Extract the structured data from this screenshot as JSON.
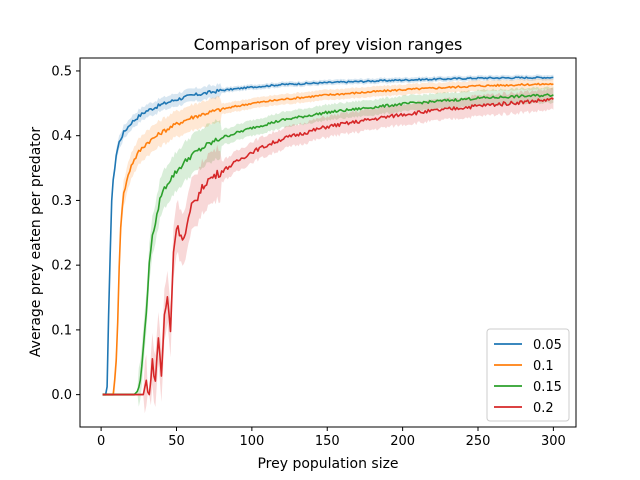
{
  "chart_data": {
    "type": "line",
    "title": "Comparison of prey vision ranges",
    "xlabel": "Prey population size",
    "ylabel": "Average prey eaten per predator",
    "xlim": [
      -14,
      315
    ],
    "ylim": [
      -0.05,
      0.52
    ],
    "xticks": [
      0,
      50,
      100,
      150,
      200,
      250,
      300
    ],
    "yticks": [
      0.0,
      0.1,
      0.2,
      0.3,
      0.4,
      0.5
    ],
    "ytick_labels": [
      "0.0",
      "0.1",
      "0.2",
      "0.3",
      "0.4",
      "0.5"
    ],
    "grid": false,
    "legend_position": "lower-right",
    "series": [
      {
        "name": "0.05",
        "color": "#1f77b4",
        "x": [
          1,
          3,
          4,
          5,
          6,
          7,
          8,
          9,
          10,
          12,
          15,
          20,
          25,
          30,
          40,
          50,
          60,
          70,
          80,
          100,
          120,
          150,
          200,
          250,
          300
        ],
        "y": [
          0.0,
          0.0,
          0.01,
          0.12,
          0.22,
          0.3,
          0.33,
          0.35,
          0.37,
          0.39,
          0.405,
          0.42,
          0.43,
          0.438,
          0.448,
          0.456,
          0.462,
          0.466,
          0.47,
          0.475,
          0.479,
          0.482,
          0.486,
          0.489,
          0.49
        ]
      },
      {
        "name": "0.1",
        "color": "#ff7f0e",
        "x": [
          1,
          5,
          8,
          10,
          11,
          12,
          13,
          14,
          15,
          17,
          20,
          25,
          30,
          40,
          50,
          60,
          70,
          80,
          100,
          120,
          150,
          200,
          250,
          300
        ],
        "y": [
          0.0,
          0.0,
          0.0,
          0.05,
          0.11,
          0.2,
          0.26,
          0.29,
          0.31,
          0.33,
          0.355,
          0.375,
          0.388,
          0.405,
          0.418,
          0.428,
          0.435,
          0.441,
          0.45,
          0.456,
          0.463,
          0.471,
          0.477,
          0.48
        ]
      },
      {
        "name": "0.15",
        "color": "#2ca02c",
        "x": [
          1,
          10,
          20,
          22,
          24,
          26,
          28,
          30,
          32,
          34,
          36,
          38,
          40,
          45,
          50,
          55,
          60,
          70,
          80,
          100,
          120,
          150,
          200,
          250,
          300
        ],
        "y": [
          0.0,
          0.0,
          0.0,
          0.0,
          0.005,
          0.02,
          0.07,
          0.13,
          0.2,
          0.25,
          0.26,
          0.29,
          0.31,
          0.33,
          0.345,
          0.358,
          0.37,
          0.385,
          0.397,
          0.412,
          0.424,
          0.436,
          0.449,
          0.458,
          0.463
        ]
      },
      {
        "name": "0.2",
        "color": "#d62728",
        "x": [
          1,
          20,
          28,
          30,
          32,
          34,
          36,
          38,
          40,
          42,
          44,
          46,
          48,
          50,
          55,
          60,
          65,
          70,
          80,
          90,
          100,
          120,
          150,
          200,
          250,
          300
        ],
        "y": [
          0.0,
          0.0,
          0.0,
          0.02,
          0.0,
          0.05,
          0.02,
          0.09,
          0.03,
          0.12,
          0.15,
          0.1,
          0.22,
          0.26,
          0.24,
          0.29,
          0.31,
          0.33,
          0.345,
          0.36,
          0.375,
          0.395,
          0.414,
          0.433,
          0.446,
          0.456
        ]
      }
    ]
  }
}
